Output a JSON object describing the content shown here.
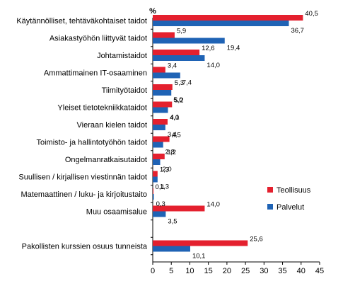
{
  "chart_data": {
    "type": "bar",
    "orientation": "horizontal",
    "unit": "%",
    "categories": [
      "Käytännölliset, tehtäväkohtaiset taidot",
      "Asiakastyöhön liittyvät taidot",
      "Johtamistaidot",
      "Ammattimainen IT-osaaminen",
      "Tiimityötaidot",
      "Yleiset tietotekniikkataidot",
      "Vieraan kielen taidot",
      "Toimisto- ja hallintotyöhön taidot",
      "Ongelmanratkaisutaidot",
      "Suullisen / kirjallisen viestinnän taidot",
      "Matemaattinen / luku- ja kirjoitustaito",
      "Muu osaamisalue",
      "",
      "Pakollisten kurssien osuus tunneista"
    ],
    "series": [
      {
        "name": "Teollisuus",
        "color": "#e4202e",
        "values": [
          40.5,
          5.9,
          12.6,
          3.4,
          5.3,
          5.2,
          4.0,
          4.5,
          3.2,
          1.3,
          0.1,
          14.0,
          null,
          25.6
        ],
        "labels": [
          "40,5",
          "5,9",
          "12,6",
          "3,4",
          "5,3",
          "5,2",
          "4,0",
          "4,5",
          "3,2",
          "1,3",
          "0,1",
          "14,0",
          "",
          "25,6"
        ]
      },
      {
        "name": "Palvelut",
        "color": "#1f63b5",
        "values": [
          36.7,
          19.4,
          14.0,
          7.4,
          5.0,
          4.1,
          3.4,
          2.8,
          2.0,
          1.3,
          0.3,
          3.5,
          null,
          10.1
        ],
        "labels": [
          "36,7",
          "19,4",
          "14,0",
          "7,4",
          "5,0",
          "4,1",
          "3,4",
          "2,8",
          "2,0",
          "1,3",
          "0,3",
          "3,5",
          "",
          "10,1"
        ]
      }
    ],
    "xlim": [
      0,
      45
    ],
    "xticks": [
      "0",
      "5",
      "10",
      "15",
      "20",
      "25",
      "30",
      "35",
      "40",
      "45"
    ],
    "xtick_values": [
      0,
      5,
      10,
      15,
      20,
      25,
      30,
      35,
      40,
      45
    ],
    "grid": false,
    "legend_position": "right"
  }
}
